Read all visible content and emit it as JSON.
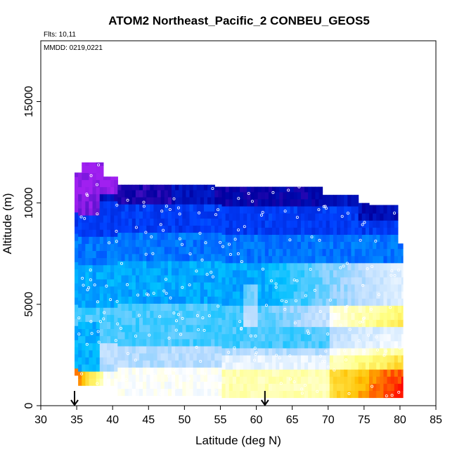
{
  "chart_data": {
    "type": "heatmap",
    "title": "ATOM2 Northeast_Pacific_2 CONBEU_GEOS5",
    "notes": {
      "flights": "Flts: 10,11",
      "dates": "MMDD: 0219,0221"
    },
    "xlabel": "Latitude (deg N)",
    "ylabel": "Altitude (m)",
    "xlim": [
      30,
      85
    ],
    "ylim": [
      0,
      18000
    ],
    "x_ticks": [
      30,
      35,
      40,
      45,
      50,
      55,
      60,
      65,
      70,
      75,
      80,
      85
    ],
    "x_tick_labels": [
      "30",
      "35",
      "40",
      "45",
      "50",
      "55",
      "60",
      "65",
      "70",
      "75",
      "80",
      "85"
    ],
    "y_ticks": [
      0,
      5000,
      10000,
      15000
    ],
    "y_tick_labels": [
      "0",
      "5000",
      "10000",
      "15000"
    ],
    "grid": false,
    "legend": "none",
    "arrow_markers_lat": [
      34.7,
      61.2
    ],
    "colorscale": [
      "#ff0000",
      "#ffc000",
      "#ffff80",
      "#ffffff",
      "#b0d8ff",
      "#00c0ff",
      "#0040ff",
      "#0000a0",
      "#a020f0"
    ],
    "colors": {
      "arrow": "#000000",
      "frame": "#000000",
      "track_marker": "#ffffff"
    }
  }
}
